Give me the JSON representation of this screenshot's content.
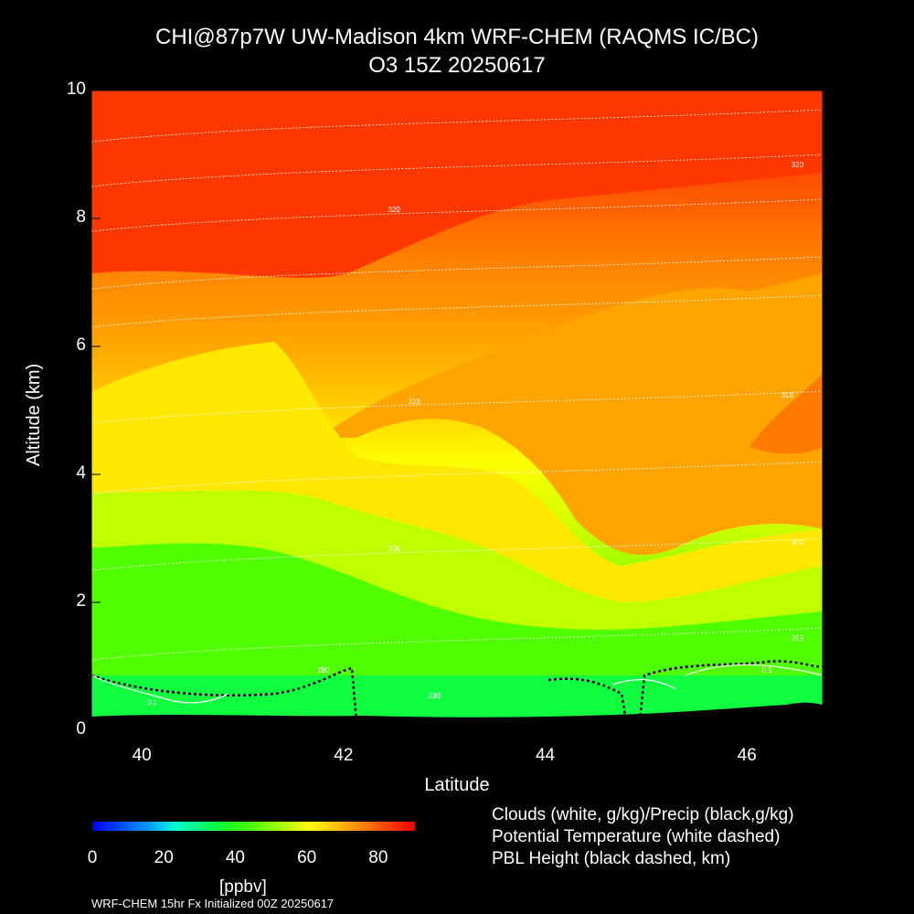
{
  "chart_data": {
    "type": "heatmap",
    "title": "CHI@87p7W UW-Madison 4km WRF-CHEM (RAQMS IC/BC)",
    "subtitle": "O3 15Z 20250617",
    "xlabel": "Latitude",
    "ylabel": "Altitude (km)",
    "xlim": [
      39.5,
      46.75
    ],
    "ylim": [
      0,
      10
    ],
    "x_ticks": [
      "40",
      "42",
      "44",
      "46"
    ],
    "y_ticks": [
      "0",
      "2",
      "4",
      "6",
      "8",
      "10"
    ],
    "colorbar": {
      "label": "[ppbv]",
      "ticks": [
        "0",
        "20",
        "40",
        "60",
        "80"
      ],
      "range": [
        0,
        90
      ]
    },
    "theta_labels": [
      {
        "text": "320",
        "lat": 42.5,
        "alt": 8.1
      },
      {
        "text": "320",
        "lat": 46.5,
        "alt": 8.8
      },
      {
        "text": "310",
        "lat": 42.7,
        "alt": 5.1
      },
      {
        "text": "310",
        "lat": 46.4,
        "alt": 5.2
      },
      {
        "text": "300",
        "lat": 42.5,
        "alt": 2.8
      },
      {
        "text": "300",
        "lat": 46.5,
        "alt": 2.9
      },
      {
        "text": "290",
        "lat": 46.5,
        "alt": 1.4
      },
      {
        "text": "290",
        "lat": 41.8,
        "alt": 0.9
      },
      {
        "text": "290",
        "lat": 42.9,
        "alt": 0.5
      }
    ],
    "cloud_labels": [
      {
        "text": "0.1",
        "lat": 40.1,
        "alt": 0.4
      },
      {
        "text": "0.1",
        "lat": 46.2,
        "alt": 0.9
      }
    ],
    "ozone_ppbv_approx": {
      "upper_troposphere_8_10km": [
        85,
        90
      ],
      "mid_troposphere_4_7km": [
        68,
        80
      ],
      "lower_troposphere_1_3km": [
        50,
        62
      ],
      "boundary_layer_0_1km": [
        38,
        48
      ]
    }
  },
  "legend_lines": [
    "Clouds (white, g/kg)/Precip (black,g/kg)",
    "Potential Temperature (white dashed)",
    "PBL Height (black dashed, km)"
  ],
  "footer": "WRF-CHEM 15hr  Fx Initialized 00Z 20250617",
  "colors": {
    "background": "#000000",
    "high_o3": "#ff2000",
    "mid_o3": "#ff9000",
    "yellow": "#ffff00",
    "low_o3": "#20ff00",
    "lowest_o3": "#00ff80"
  }
}
